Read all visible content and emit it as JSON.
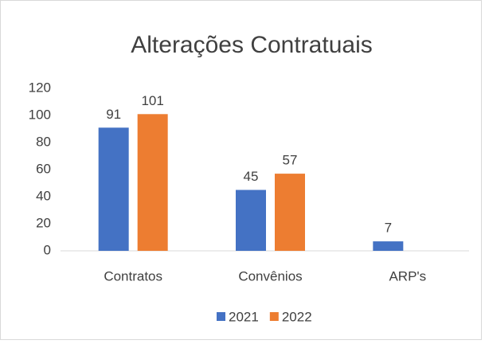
{
  "chart_data": {
    "type": "bar",
    "title": "Alterações Contratuais",
    "categories": [
      "Contratos",
      "Convênios",
      "ARP's"
    ],
    "series": [
      {
        "name": "2021",
        "color": "#4472c4",
        "values": [
          91,
          45,
          7
        ]
      },
      {
        "name": "2022",
        "color": "#ed7d31",
        "values": [
          101,
          57,
          null
        ]
      }
    ],
    "ylim": [
      0,
      120
    ],
    "yticks": [
      0,
      20,
      40,
      60,
      80,
      100,
      120
    ],
    "grid": false,
    "legend": "bottom"
  }
}
